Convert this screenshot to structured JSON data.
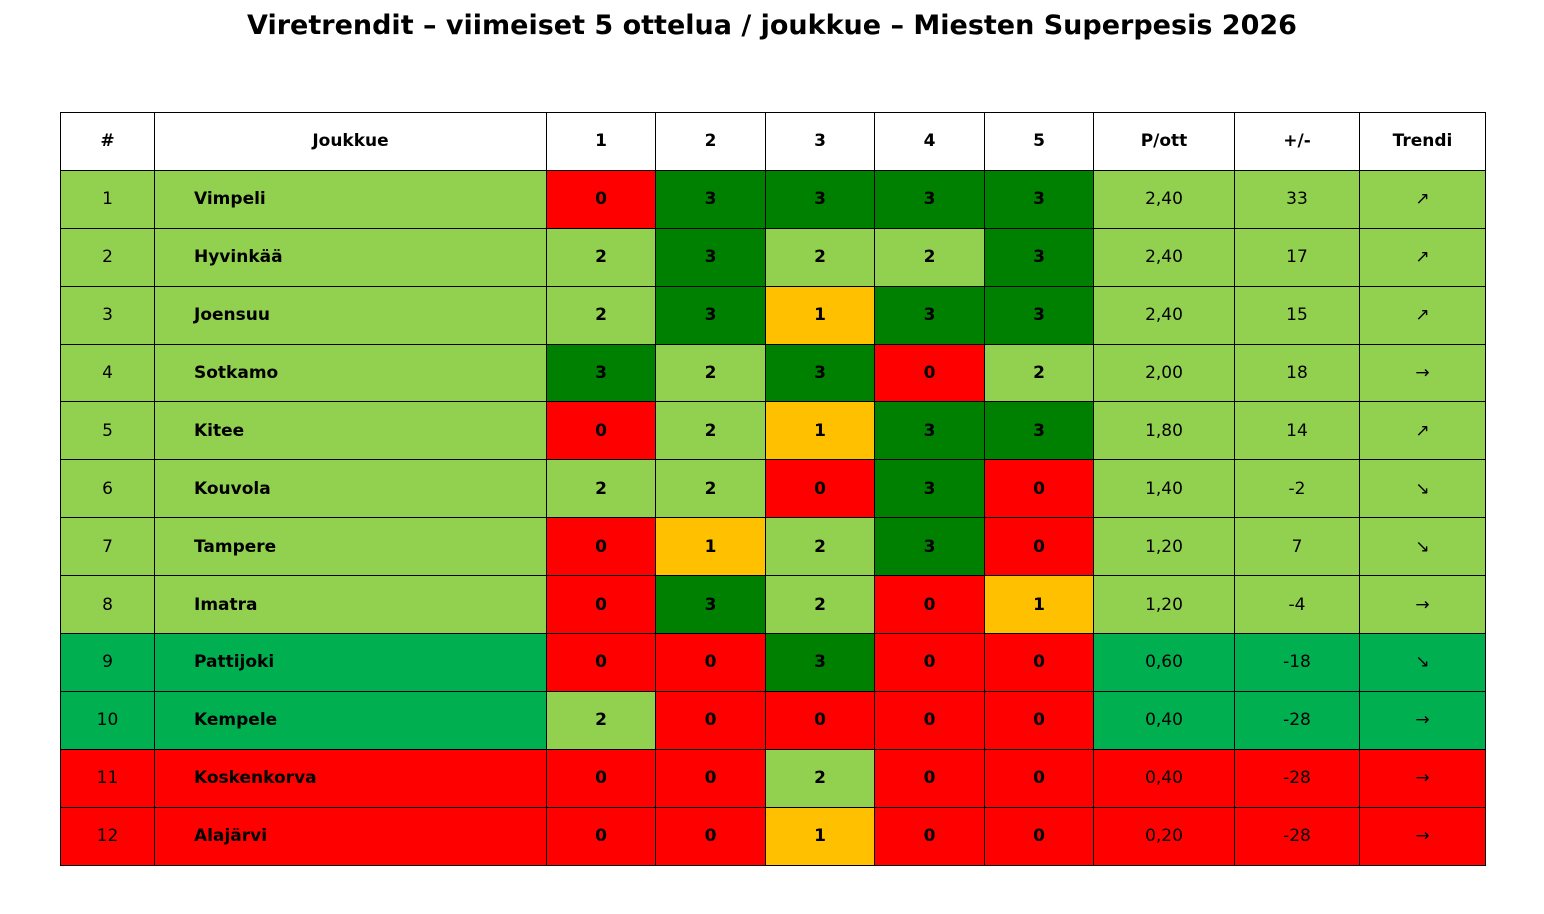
{
  "header": {
    "title": "Viretrendit – viimeiset 5 ottelua / joukkue – Miesten Superpesis 2026"
  },
  "table": {
    "columns": [
      "#",
      "Joukkue",
      "1",
      "2",
      "3",
      "4",
      "5",
      "P/ott",
      "+/-",
      "Trendi"
    ],
    "rows": [
      [
        "1",
        "Vimpeli",
        "0",
        "3",
        "3",
        "3",
        "3",
        "2,40",
        "33",
        "↗"
      ],
      [
        "2",
        "Hyvinkää",
        "2",
        "3",
        "2",
        "2",
        "3",
        "2,40",
        "17",
        "↗"
      ],
      [
        "3",
        "Joensuu",
        "2",
        "3",
        "1",
        "3",
        "3",
        "2,40",
        "15",
        "↗"
      ],
      [
        "4",
        "Sotkamo",
        "3",
        "2",
        "3",
        "0",
        "2",
        "2,00",
        "18",
        "→"
      ],
      [
        "5",
        "Kitee",
        "0",
        "2",
        "1",
        "3",
        "3",
        "1,80",
        "14",
        "↗"
      ],
      [
        "6",
        "Kouvola",
        "2",
        "2",
        "0",
        "3",
        "0",
        "1,40",
        "-2",
        "↘"
      ],
      [
        "7",
        "Tampere",
        "0",
        "1",
        "2",
        "3",
        "0",
        "1,20",
        "7",
        "↘"
      ],
      [
        "8",
        "Imatra",
        "0",
        "3",
        "2",
        "0",
        "1",
        "1,20",
        "-4",
        "→"
      ],
      [
        "9",
        "Pattijoki",
        "0",
        "0",
        "3",
        "0",
        "0",
        "0,60",
        "-18",
        "↘"
      ],
      [
        "10",
        "Kempele",
        "2",
        "0",
        "0",
        "0",
        "0",
        "0,40",
        "-28",
        "→"
      ],
      [
        "11",
        "Koskenkorva",
        "0",
        "0",
        "2",
        "0",
        "0",
        "0,40",
        "-28",
        "→"
      ],
      [
        "12",
        "Alajärvi",
        "0",
        "0",
        "1",
        "0",
        "0",
        "0,20",
        "-28",
        "→"
      ]
    ],
    "row_colors": [
      "#92d050",
      "#92d050",
      "#92d050",
      "#92d050",
      "#92d050",
      "#92d050",
      "#92d050",
      "#92d050",
      "#00b050",
      "#00b050",
      "#ff0000",
      "#ff0000"
    ],
    "result_colors": {
      "0": "#ff0000",
      "1": "#ffc000",
      "2": "#92d050",
      "3": "#008000"
    }
  }
}
